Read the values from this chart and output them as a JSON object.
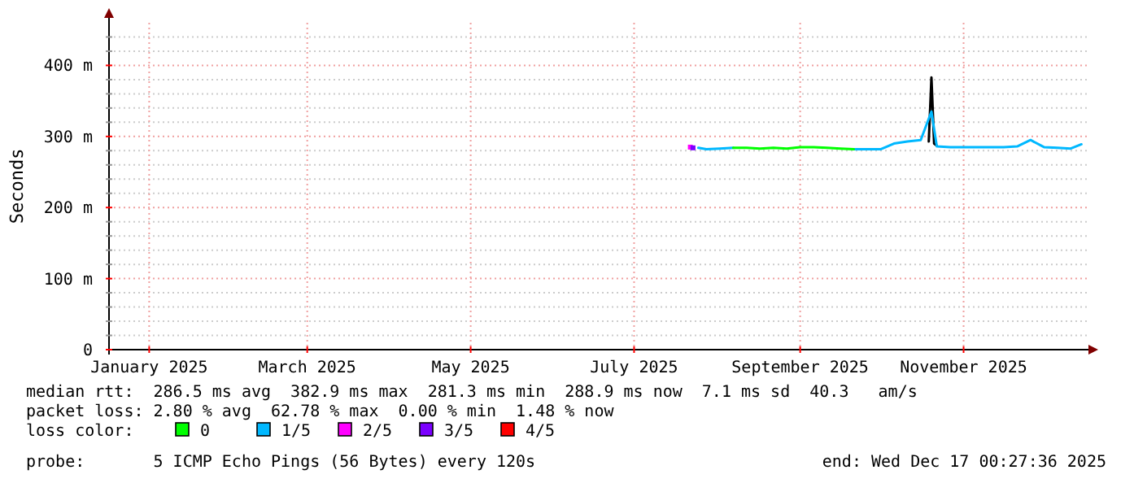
{
  "chart_data": {
    "type": "line",
    "ylabel": "Seconds",
    "xlim": [
      "2024-12-17",
      "2025-12-17"
    ],
    "xticks": [
      {
        "value": "2025-01-01",
        "label": "January 2025"
      },
      {
        "value": "2025-03-01",
        "label": "March 2025"
      },
      {
        "value": "2025-05-01",
        "label": "May 2025"
      },
      {
        "value": "2025-07-01",
        "label": "July 2025"
      },
      {
        "value": "2025-09-01",
        "label": "September 2025"
      },
      {
        "value": "2025-11-01",
        "label": "November 2025"
      }
    ],
    "ylim": [
      0,
      460
    ],
    "yticks": [
      0,
      {
        "value": 20,
        "label": null
      },
      {
        "value": 40,
        "label": null
      },
      {
        "value": 60,
        "label": null
      },
      {
        "value": 80,
        "label": null
      },
      {
        "value": 100,
        "label": "100 m"
      },
      {
        "value": 120,
        "label": null
      },
      {
        "value": 140,
        "label": null
      },
      {
        "value": 160,
        "label": null
      },
      {
        "value": 180,
        "label": null
      },
      {
        "value": 200,
        "label": "200 m"
      },
      {
        "value": 220,
        "label": null
      },
      {
        "value": 240,
        "label": null
      },
      {
        "value": 260,
        "label": null
      },
      {
        "value": 280,
        "label": null
      },
      {
        "value": 300,
        "label": "300 m"
      },
      {
        "value": 320,
        "label": null
      },
      {
        "value": 340,
        "label": null
      },
      {
        "value": 360,
        "label": null
      },
      {
        "value": 380,
        "label": null
      },
      {
        "value": 400,
        "label": "400 m"
      },
      {
        "value": 420,
        "label": null
      },
      {
        "value": 440,
        "label": null
      }
    ],
    "grid": true,
    "legend": "bottom",
    "legend_title": "loss color:",
    "series": [
      {
        "type": "line",
        "color": "#000000",
        "x": [
          "2025-10-19",
          "2025-10-20",
          "2025-10-21",
          "2025-10-22"
        ],
        "values": [
          293,
          383,
          290,
          287
        ]
      },
      {
        "name": "1/5",
        "color": "#00b8ff",
        "x": [
          "2025-07-25",
          "2025-07-28",
          "2025-08-02",
          "2025-08-07",
          "2025-08-12",
          "2025-08-17",
          "2025-08-22",
          "2025-08-27",
          "2025-09-01",
          "2025-09-06",
          "2025-09-11",
          "2025-09-16",
          "2025-09-21",
          "2025-09-26",
          "2025-10-01",
          "2025-10-06",
          "2025-10-11",
          "2025-10-16",
          "2025-10-20",
          "2025-10-22",
          "2025-10-27",
          "2025-11-01",
          "2025-11-06",
          "2025-11-11",
          "2025-11-16",
          "2025-11-21",
          "2025-11-26",
          "2025-12-01",
          "2025-12-06",
          "2025-12-11",
          "2025-12-15"
        ],
        "values": [
          284,
          282,
          283,
          284,
          null,
          null,
          null,
          null,
          null,
          null,
          null,
          null,
          282,
          282,
          282,
          290,
          293,
          295,
          335,
          286,
          285,
          285,
          285,
          285,
          285,
          286,
          295,
          285,
          284,
          283,
          289
        ]
      },
      {
        "name": "0",
        "color": "#00ff00",
        "x": [
          "2025-08-07",
          "2025-08-12",
          "2025-08-17",
          "2025-08-22",
          "2025-08-27",
          "2025-09-01",
          "2025-09-06",
          "2025-09-11",
          "2025-09-16",
          "2025-09-21"
        ],
        "values": [
          284,
          284,
          283,
          284,
          283,
          285,
          285,
          284,
          283,
          282
        ]
      },
      {
        "name": "2/5",
        "color": "#ff00ff",
        "type": "scatter",
        "x": [
          "2025-07-22"
        ],
        "values": [
          285
        ]
      },
      {
        "name": "3/5",
        "color": "#7b00ff",
        "type": "scatter",
        "x": [
          "2025-07-23"
        ],
        "values": [
          284
        ]
      },
      {
        "name": "4/5",
        "color": "#ff0000",
        "type": "scatter"
      }
    ],
    "annotations": [
      "median rtt:  286.5 ms avg  382.9 ms max  281.3 ms min  288.9 ms now  7.1 ms sd  40.3   am/s",
      "packet loss: 2.80 % avg  62.78 % max  0.00 % min  1.48 % now",
      "probe:       5 ICMP Echo Pings (56 Bytes) every 120s",
      "end: Wed Dec 17 00:27:36 2025"
    ]
  }
}
